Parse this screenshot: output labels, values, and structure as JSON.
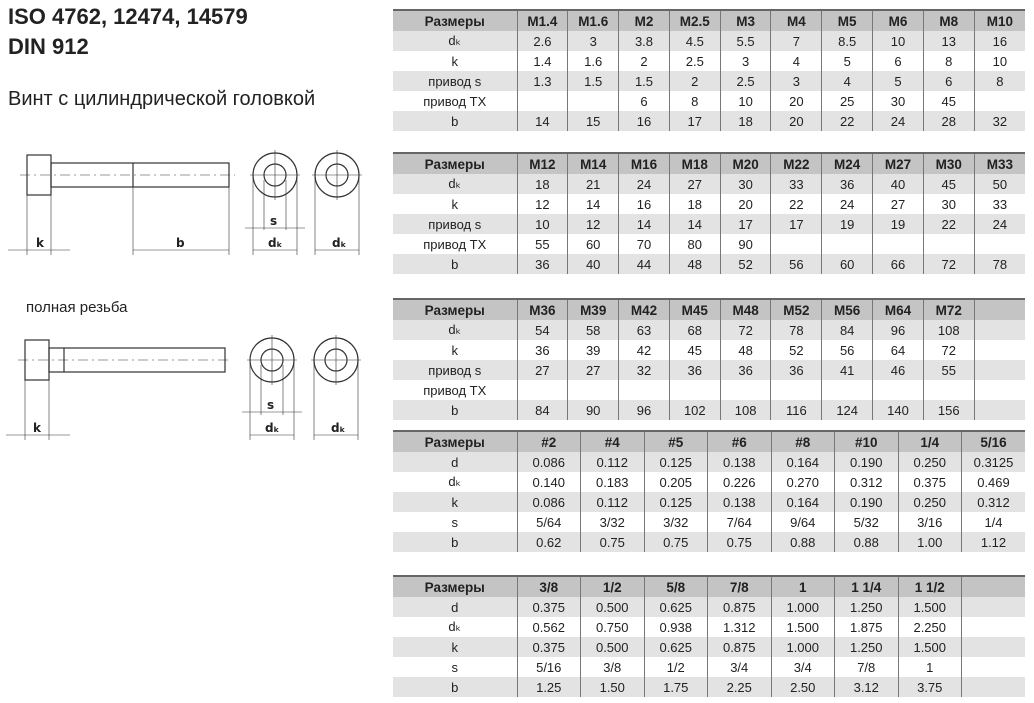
{
  "header": {
    "title_line1": "ISO 4762, 12474, 14579",
    "title_line2": "DIN 912",
    "subtitle": "Винт с цилиндрической головкой",
    "full_thread_label": "полная резьба"
  },
  "drawing_labels": {
    "k": "k",
    "b": "b",
    "s": "s",
    "dk": "dₖ"
  },
  "tables": [
    {
      "columns": [
        "Размеры",
        "M1.4",
        "M1.6",
        "M2",
        "M2.5",
        "M3",
        "M4",
        "M5",
        "M6",
        "M8",
        "M10"
      ],
      "rows": [
        [
          "dₖ",
          "2.6",
          "3",
          "3.8",
          "4.5",
          "5.5",
          "7",
          "8.5",
          "10",
          "13",
          "16"
        ],
        [
          "k",
          "1.4",
          "1.6",
          "2",
          "2.5",
          "3",
          "4",
          "5",
          "6",
          "8",
          "10"
        ],
        [
          "привод s",
          "1.3",
          "1.5",
          "1.5",
          "2",
          "2.5",
          "3",
          "4",
          "5",
          "6",
          "8"
        ],
        [
          "привод TX",
          "",
          "",
          "6",
          "8",
          "10",
          "20",
          "25",
          "30",
          "45",
          ""
        ],
        [
          "b",
          "14",
          "15",
          "16",
          "17",
          "18",
          "20",
          "22",
          "24",
          "28",
          "32"
        ]
      ]
    },
    {
      "columns": [
        "Размеры",
        "M12",
        "M14",
        "M16",
        "M18",
        "M20",
        "M22",
        "M24",
        "M27",
        "M30",
        "M33"
      ],
      "rows": [
        [
          "dₖ",
          "18",
          "21",
          "24",
          "27",
          "30",
          "33",
          "36",
          "40",
          "45",
          "50"
        ],
        [
          "k",
          "12",
          "14",
          "16",
          "18",
          "20",
          "22",
          "24",
          "27",
          "30",
          "33"
        ],
        [
          "привод s",
          "10",
          "12",
          "14",
          "14",
          "17",
          "17",
          "19",
          "19",
          "22",
          "24"
        ],
        [
          "привод TX",
          "55",
          "60",
          "70",
          "80",
          "90",
          "",
          "",
          "",
          "",
          ""
        ],
        [
          "b",
          "36",
          "40",
          "44",
          "48",
          "52",
          "56",
          "60",
          "66",
          "72",
          "78"
        ]
      ]
    },
    {
      "columns": [
        "Размеры",
        "M36",
        "M39",
        "M42",
        "M45",
        "M48",
        "M52",
        "M56",
        "M64",
        "M72",
        ""
      ],
      "rows": [
        [
          "dₖ",
          "54",
          "58",
          "63",
          "68",
          "72",
          "78",
          "84",
          "96",
          "108",
          ""
        ],
        [
          "k",
          "36",
          "39",
          "42",
          "45",
          "48",
          "52",
          "56",
          "64",
          "72",
          ""
        ],
        [
          "привод s",
          "27",
          "27",
          "32",
          "36",
          "36",
          "36",
          "41",
          "46",
          "55",
          ""
        ],
        [
          "привод TX",
          "",
          "",
          "",
          "",
          "",
          "",
          "",
          "",
          "",
          ""
        ],
        [
          "b",
          "84",
          "90",
          "96",
          "102",
          "108",
          "116",
          "124",
          "140",
          "156",
          ""
        ]
      ]
    },
    {
      "columns": [
        "Размеры",
        "#2",
        "#4",
        "#5",
        "#6",
        "#8",
        "#10",
        "1/4",
        "5/16"
      ],
      "rows": [
        [
          "d",
          "0.086",
          "0.112",
          "0.125",
          "0.138",
          "0.164",
          "0.190",
          "0.250",
          "0.3125"
        ],
        [
          "dₖ",
          "0.140",
          "0.183",
          "0.205",
          "0.226",
          "0.270",
          "0.312",
          "0.375",
          "0.469"
        ],
        [
          "k",
          "0.086",
          "0.112",
          "0.125",
          "0.138",
          "0.164",
          "0.190",
          "0.250",
          "0.312"
        ],
        [
          "s",
          "5/64",
          "3/32",
          "3/32",
          "7/64",
          "9/64",
          "5/32",
          "3/16",
          "1/4"
        ],
        [
          "b",
          "0.62",
          "0.75",
          "0.75",
          "0.75",
          "0.88",
          "0.88",
          "1.00",
          "1.12"
        ]
      ]
    },
    {
      "columns": [
        "Размеры",
        "3/8",
        "1/2",
        "5/8",
        "7/8",
        "1",
        "1 1/4",
        "1 1/2",
        ""
      ],
      "rows": [
        [
          "d",
          "0.375",
          "0.500",
          "0.625",
          "0.875",
          "1.000",
          "1.250",
          "1.500",
          ""
        ],
        [
          "dₖ",
          "0.562",
          "0.750",
          "0.938",
          "1.312",
          "1.500",
          "1.875",
          "2.250",
          ""
        ],
        [
          "k",
          "0.375",
          "0.500",
          "0.625",
          "0.875",
          "1.000",
          "1.250",
          "1.500",
          ""
        ],
        [
          "s",
          "5/16",
          "3/8",
          "1/2",
          "3/4",
          "3/4",
          "7/8",
          "1",
          ""
        ],
        [
          "b",
          "1.25",
          "1.50",
          "1.75",
          "2.25",
          "2.50",
          "3.12",
          "3.75",
          ""
        ]
      ]
    }
  ]
}
